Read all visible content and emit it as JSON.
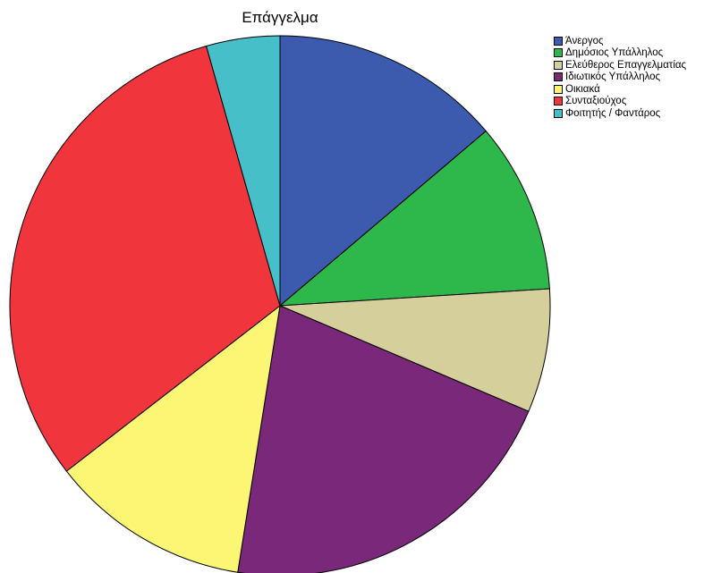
{
  "chart_data": {
    "type": "pie",
    "title": "Επάγγελμα",
    "legend_position": "right",
    "start": "top",
    "direction": "clockwise",
    "slices": [
      {
        "label": "Άνεργος",
        "value": 13.8,
        "color": "#3C5AAE"
      },
      {
        "label": "Δημόσιος Υπάλληλος",
        "value": 10.2,
        "color": "#2EB84B"
      },
      {
        "label": "Ελεύθερος Επαγγελματίας",
        "value": 7.4,
        "color": "#D4CF9B"
      },
      {
        "label": "Ιδιωτικός Υπάλληλος",
        "value": 21.1,
        "color": "#7A287A"
      },
      {
        "label": "Οικιακά",
        "value": 12.0,
        "color": "#FBF775"
      },
      {
        "label": "Συνταξιούχος",
        "value": 31.1,
        "color": "#F1353C"
      },
      {
        "label": "Φοιτητής / Φαντάρος",
        "value": 4.4,
        "color": "#47BFC8"
      }
    ]
  }
}
